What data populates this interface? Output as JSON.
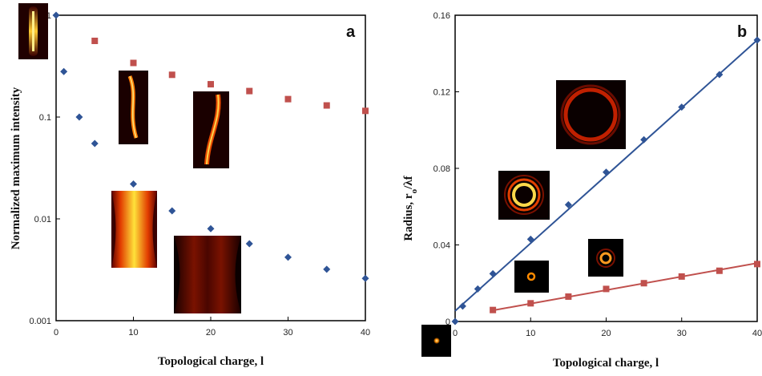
{
  "chart_data": [
    {
      "panel": "a",
      "type": "scatter",
      "xlabel": "Topological charge, l",
      "ylabel": "Normalized maximum intensity",
      "xlim": [
        0,
        40
      ],
      "ylim": [
        0.001,
        1
      ],
      "yscale": "log",
      "x_ticks": [
        "0",
        "10",
        "20",
        "30",
        "40"
      ],
      "y_ticks": [
        "0.001",
        "0.01",
        "0.1",
        "1"
      ],
      "grid": false,
      "series": [
        {
          "color": "#2f5496",
          "marker": "diamond",
          "x": [
            0,
            1,
            3,
            5,
            10,
            15,
            20,
            25,
            30,
            35,
            40
          ],
          "y": [
            1.0,
            0.28,
            0.1,
            0.055,
            0.022,
            0.012,
            0.008,
            0.0057,
            0.0042,
            0.0032,
            0.0026
          ]
        },
        {
          "color": "#c0504d",
          "marker": "square",
          "x": [
            5,
            10,
            15,
            20,
            25,
            30,
            35,
            40
          ],
          "y": [
            0.56,
            0.34,
            0.26,
            0.21,
            0.18,
            0.15,
            0.13,
            0.115
          ]
        }
      ]
    },
    {
      "panel": "b",
      "type": "scatter",
      "xlabel": "Topological charge, l",
      "ylabel": "Radius, r",
      "ylabel_sub": "o",
      "ylabel_tail": "/λf",
      "xlim": [
        0,
        40
      ],
      "ylim": [
        0,
        0.16
      ],
      "x_ticks": [
        "0",
        "10",
        "20",
        "30",
        "40"
      ],
      "y_ticks": [
        "0",
        "0.04",
        "0.08",
        "0.12",
        "0.16"
      ],
      "grid": false,
      "series": [
        {
          "color": "#2f5496",
          "marker": "diamond",
          "x": [
            0,
            1,
            3,
            5,
            10,
            15,
            20,
            25,
            30,
            35,
            40
          ],
          "y": [
            0.0,
            0.008,
            0.017,
            0.025,
            0.043,
            0.061,
            0.078,
            0.095,
            0.112,
            0.129,
            0.147
          ],
          "fit": [
            [
              0,
              0.0055
            ],
            [
              40,
              0.147
            ]
          ]
        },
        {
          "color": "#c0504d",
          "marker": "square",
          "x": [
            5,
            10,
            15,
            20,
            25,
            30,
            35,
            40
          ],
          "y": [
            0.006,
            0.0095,
            0.013,
            0.017,
            0.02,
            0.0235,
            0.0265,
            0.03
          ],
          "fit": [
            [
              5,
              0.0058
            ],
            [
              40,
              0.0305
            ]
          ]
        }
      ]
    }
  ]
}
